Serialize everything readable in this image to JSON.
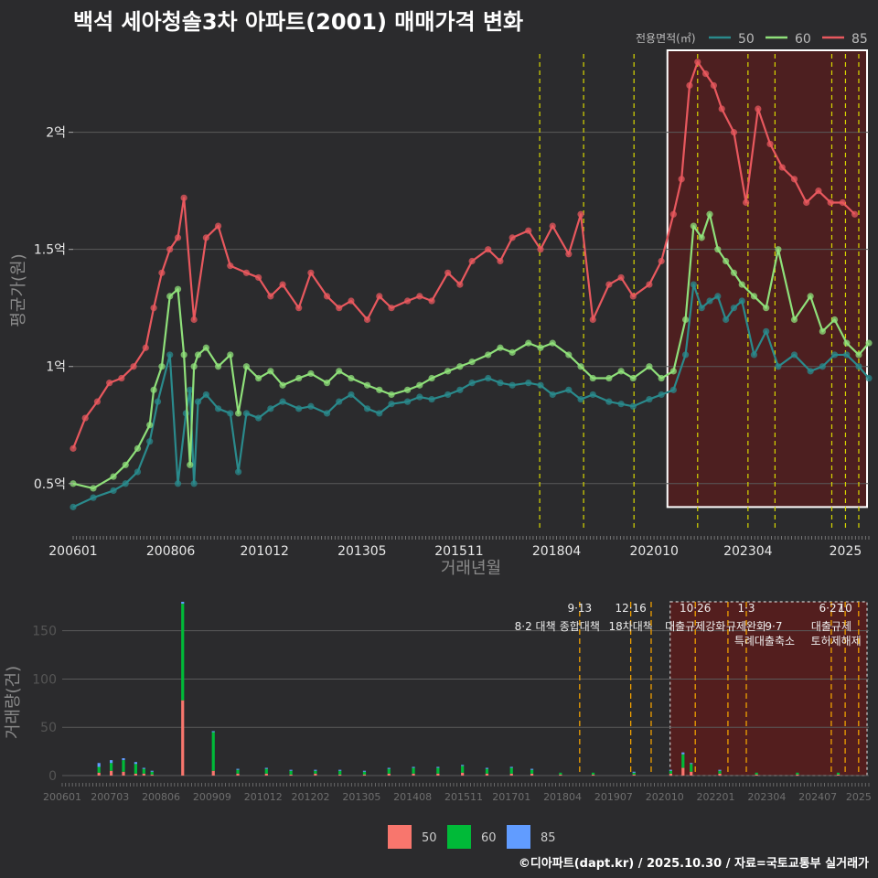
{
  "title": "백석 세아청솔3차 아파트(2001) 매매가격 변화",
  "credit": "©디아파트(dapt.kr) / 2025.10.30 / 자료=국토교통부 실거래가",
  "colors": {
    "s50": "#2a8a8c",
    "s60": "#8fe07a",
    "s85": "#e8585e",
    "bar50": "#f8766d",
    "bar60": "#00ba38",
    "bar85": "#619cff",
    "vline": "#d9d900",
    "vline_bottom": "#f0a000",
    "highlight": "#5a1c1c"
  },
  "chart_data": [
    {
      "type": "line",
      "title": "백석 세아청솔3차 아파트(2001) 매매가격 변화",
      "xlabel": "거래년월",
      "ylabel": "평균가(원)",
      "legend_title": "전용면적(㎡)",
      "legend_position": "top-right",
      "xlim": [
        2006.0,
        2025.75
      ],
      "ylim": [
        0.3,
        2.35
      ],
      "x_ticks": [
        {
          "x": 2006.0,
          "label": "200601"
        },
        {
          "x": 2008.42,
          "label": "200806"
        },
        {
          "x": 2010.75,
          "label": "201012"
        },
        {
          "x": 2013.17,
          "label": "201305"
        },
        {
          "x": 2015.58,
          "label": "201511"
        },
        {
          "x": 2018.0,
          "label": "201804"
        },
        {
          "x": 2020.42,
          "label": "202010"
        },
        {
          "x": 2022.75,
          "label": "202304"
        },
        {
          "x": 2025.17,
          "label": "2025"
        }
      ],
      "y_ticks": [
        {
          "y": 0.5,
          "label": "0.5억"
        },
        {
          "y": 1.0,
          "label": "1억"
        },
        {
          "y": 1.5,
          "label": "1.5억"
        },
        {
          "y": 2.0,
          "label": "2억"
        }
      ],
      "vlines": [
        2017.58,
        2018.67,
        2019.92,
        2021.5,
        2022.75,
        2023.42,
        2024.83,
        2025.17,
        2025.5
      ],
      "highlight_range": {
        "x": [
          2020.75,
          2025.75
        ],
        "y": [
          0.4,
          2.35
        ]
      },
      "series": [
        {
          "name": "50",
          "x": [
            2006.0,
            2006.5,
            2007.0,
            2007.3,
            2007.6,
            2007.9,
            2008.1,
            2008.4,
            2008.6,
            2008.8,
            2008.9,
            2009.0,
            2009.1,
            2009.3,
            2009.6,
            2009.9,
            2010.1,
            2010.3,
            2010.6,
            2010.9,
            2011.2,
            2011.6,
            2011.9,
            2012.3,
            2012.6,
            2012.9,
            2013.3,
            2013.6,
            2013.9,
            2014.3,
            2014.6,
            2014.9,
            2015.3,
            2015.6,
            2015.9,
            2016.3,
            2016.6,
            2016.9,
            2017.3,
            2017.6,
            2017.9,
            2018.3,
            2018.6,
            2018.9,
            2019.3,
            2019.6,
            2019.9,
            2020.3,
            2020.6,
            2020.9,
            2021.2,
            2021.4,
            2021.6,
            2021.8,
            2022.0,
            2022.2,
            2022.4,
            2022.6,
            2022.9,
            2023.2,
            2023.5,
            2023.9,
            2024.3,
            2024.6,
            2024.9,
            2025.2,
            2025.5,
            2025.75
          ],
          "values": [
            0.4,
            0.44,
            0.47,
            0.5,
            0.55,
            0.68,
            0.85,
            1.05,
            0.5,
            0.8,
            0.9,
            0.5,
            0.85,
            0.88,
            0.82,
            0.8,
            0.55,
            0.8,
            0.78,
            0.82,
            0.85,
            0.82,
            0.83,
            0.8,
            0.85,
            0.88,
            0.82,
            0.8,
            0.84,
            0.85,
            0.87,
            0.86,
            0.88,
            0.9,
            0.93,
            0.95,
            0.93,
            0.92,
            0.93,
            0.92,
            0.88,
            0.9,
            0.86,
            0.88,
            0.85,
            0.84,
            0.83,
            0.86,
            0.88,
            0.9,
            1.05,
            1.35,
            1.25,
            1.28,
            1.3,
            1.2,
            1.25,
            1.28,
            1.05,
            1.15,
            1.0,
            1.05,
            0.98,
            1.0,
            1.05,
            1.05,
            1.0,
            0.95
          ]
        },
        {
          "name": "60",
          "x": [
            2006.0,
            2006.5,
            2007.0,
            2007.3,
            2007.6,
            2007.9,
            2008.0,
            2008.2,
            2008.4,
            2008.6,
            2008.75,
            2008.9,
            2009.0,
            2009.1,
            2009.3,
            2009.6,
            2009.9,
            2010.1,
            2010.3,
            2010.6,
            2010.9,
            2011.2,
            2011.6,
            2011.9,
            2012.3,
            2012.6,
            2012.9,
            2013.3,
            2013.6,
            2013.9,
            2014.3,
            2014.6,
            2014.9,
            2015.3,
            2015.6,
            2015.9,
            2016.3,
            2016.6,
            2016.9,
            2017.3,
            2017.6,
            2017.9,
            2018.3,
            2018.6,
            2018.9,
            2019.3,
            2019.6,
            2019.9,
            2020.3,
            2020.6,
            2020.9,
            2021.2,
            2021.4,
            2021.6,
            2021.8,
            2022.0,
            2022.2,
            2022.4,
            2022.6,
            2022.9,
            2023.2,
            2023.5,
            2023.9,
            2024.3,
            2024.6,
            2024.9,
            2025.2,
            2025.5,
            2025.75
          ],
          "values": [
            0.5,
            0.48,
            0.53,
            0.58,
            0.65,
            0.75,
            0.9,
            1.0,
            1.3,
            1.33,
            1.05,
            0.58,
            1.0,
            1.05,
            1.08,
            1.0,
            1.05,
            0.8,
            1.0,
            0.95,
            0.98,
            0.92,
            0.95,
            0.97,
            0.93,
            0.98,
            0.95,
            0.92,
            0.9,
            0.88,
            0.9,
            0.92,
            0.95,
            0.98,
            1.0,
            1.02,
            1.05,
            1.08,
            1.06,
            1.1,
            1.08,
            1.1,
            1.05,
            1.0,
            0.95,
            0.95,
            0.98,
            0.95,
            1.0,
            0.95,
            0.98,
            1.2,
            1.6,
            1.55,
            1.65,
            1.5,
            1.45,
            1.4,
            1.35,
            1.3,
            1.25,
            1.5,
            1.2,
            1.3,
            1.15,
            1.2,
            1.1,
            1.05,
            1.1
          ]
        },
        {
          "name": "85",
          "x": [
            2006.0,
            2006.3,
            2006.6,
            2006.9,
            2007.2,
            2007.5,
            2007.8,
            2008.0,
            2008.2,
            2008.4,
            2008.6,
            2008.75,
            2009.0,
            2009.3,
            2009.6,
            2009.9,
            2010.3,
            2010.6,
            2010.9,
            2011.2,
            2011.6,
            2011.9,
            2012.3,
            2012.6,
            2012.9,
            2013.3,
            2013.6,
            2013.9,
            2014.3,
            2014.6,
            2014.9,
            2015.3,
            2015.6,
            2015.9,
            2016.3,
            2016.6,
            2016.9,
            2017.3,
            2017.6,
            2017.9,
            2018.3,
            2018.6,
            2018.9,
            2019.3,
            2019.6,
            2019.9,
            2020.3,
            2020.6,
            2020.9,
            2021.1,
            2021.3,
            2021.5,
            2021.7,
            2021.9,
            2022.1,
            2022.4,
            2022.7,
            2023.0,
            2023.3,
            2023.6,
            2023.9,
            2024.2,
            2024.5,
            2024.8,
            2025.1,
            2025.4
          ],
          "values": [
            0.65,
            0.78,
            0.85,
            0.93,
            0.95,
            1.0,
            1.08,
            1.25,
            1.4,
            1.5,
            1.55,
            1.72,
            1.2,
            1.55,
            1.6,
            1.43,
            1.4,
            1.38,
            1.3,
            1.35,
            1.25,
            1.4,
            1.3,
            1.25,
            1.28,
            1.2,
            1.3,
            1.25,
            1.28,
            1.3,
            1.28,
            1.4,
            1.35,
            1.45,
            1.5,
            1.45,
            1.55,
            1.58,
            1.5,
            1.6,
            1.48,
            1.65,
            1.2,
            1.35,
            1.38,
            1.3,
            1.35,
            1.45,
            1.65,
            1.8,
            2.2,
            2.3,
            2.25,
            2.2,
            2.1,
            2.0,
            1.7,
            2.1,
            1.95,
            1.85,
            1.8,
            1.7,
            1.75,
            1.7,
            1.7,
            1.65
          ]
        }
      ]
    },
    {
      "type": "bar",
      "stacked": true,
      "ylabel": "거래량(건)",
      "xlim": [
        2006.0,
        2025.75
      ],
      "ylim": [
        0,
        180
      ],
      "y_ticks": [
        0,
        50,
        100,
        150
      ],
      "x_ticks": [
        {
          "x": 2006.0,
          "label": "200601"
        },
        {
          "x": 2007.17,
          "label": "200703"
        },
        {
          "x": 2008.42,
          "label": "200806"
        },
        {
          "x": 2009.67,
          "label": "200909"
        },
        {
          "x": 2010.92,
          "label": "201012"
        },
        {
          "x": 2012.08,
          "label": "201202"
        },
        {
          "x": 2013.33,
          "label": "201305"
        },
        {
          "x": 2014.58,
          "label": "201408"
        },
        {
          "x": 2015.83,
          "label": "201511"
        },
        {
          "x": 2017.0,
          "label": "201701"
        },
        {
          "x": 2018.25,
          "label": "201804"
        },
        {
          "x": 2019.5,
          "label": "201907"
        },
        {
          "x": 2020.75,
          "label": "202010"
        },
        {
          "x": 2022.0,
          "label": "202201"
        },
        {
          "x": 2023.25,
          "label": "202304"
        },
        {
          "x": 2024.5,
          "label": "202407"
        },
        {
          "x": 2025.5,
          "label": "2025"
        }
      ],
      "legend": [
        "50",
        "60",
        "85"
      ],
      "legend_position": "bottom",
      "highlight_range": [
        2020.75,
        2025.75
      ],
      "vlines": [
        {
          "x": 2017.58,
          "label": "8·2 대책",
          "row": 1
        },
        {
          "x": 2018.67,
          "label": "9·13",
          "row": 0
        },
        {
          "x": 2018.67,
          "label": "종합대책",
          "row": 1
        },
        {
          "x": 2019.92,
          "label": "12·16",
          "row": 0
        },
        {
          "x": 2019.92,
          "label": "18차대책",
          "row": 1
        },
        {
          "x": 2020.42,
          "label": "",
          "row": 0
        },
        {
          "x": 2021.5,
          "label": "10·26",
          "row": 0
        },
        {
          "x": 2021.5,
          "label": "대출규제강화",
          "row": 1
        },
        {
          "x": 2022.3,
          "label": "",
          "row": 0
        },
        {
          "x": 2022.75,
          "label": "1·3",
          "row": 0
        },
        {
          "x": 2022.75,
          "label": "규제완화",
          "row": 1
        },
        {
          "x": 2023.42,
          "label": "9·7",
          "row": 1
        },
        {
          "x": 2023.42,
          "label": "특례대출축소",
          "row": 2
        },
        {
          "x": 2024.83,
          "label": "6·27",
          "row": 0
        },
        {
          "x": 2024.83,
          "label": "대출규제",
          "row": 1
        },
        {
          "x": 2025.17,
          "label": "10",
          "row": 0
        },
        {
          "x": 2025.17,
          "label": "토허제해제",
          "row": 2
        },
        {
          "x": 2025.5,
          "label": "",
          "row": 0
        }
      ],
      "series": [
        {
          "name": "50",
          "x": [
            2006.9,
            2007.2,
            2007.5,
            2007.8,
            2008.0,
            2008.2,
            2008.95,
            2009.7,
            2010.3,
            2011.0,
            2011.6,
            2012.2,
            2012.8,
            2013.4,
            2014.0,
            2014.6,
            2015.2,
            2015.8,
            2016.4,
            2017.0,
            2017.5,
            2018.2,
            2019.0,
            2020.0,
            2020.9,
            2021.2,
            2021.4,
            2022.1,
            2023.0,
            2024.0,
            2025.0
          ],
          "values": [
            3,
            5,
            4,
            2,
            2,
            1,
            78,
            5,
            2,
            2,
            1,
            2,
            1,
            1,
            2,
            2,
            2,
            3,
            2,
            2,
            2,
            1,
            1,
            1,
            2,
            8,
            4,
            2,
            1,
            1,
            1
          ]
        },
        {
          "name": "60",
          "x": [
            2006.9,
            2007.2,
            2007.5,
            2007.8,
            2008.0,
            2008.2,
            2008.95,
            2009.7,
            2010.3,
            2011.0,
            2011.6,
            2012.2,
            2012.8,
            2013.4,
            2014.0,
            2014.6,
            2015.2,
            2015.8,
            2016.4,
            2017.0,
            2017.5,
            2018.2,
            2019.0,
            2020.0,
            2020.9,
            2021.2,
            2021.4,
            2022.1,
            2023.0,
            2024.0,
            2025.0
          ],
          "values": [
            6,
            8,
            12,
            10,
            5,
            3,
            100,
            40,
            4,
            5,
            4,
            3,
            4,
            3,
            5,
            6,
            6,
            7,
            5,
            6,
            4,
            2,
            2,
            2,
            3,
            14,
            8,
            3,
            2,
            2,
            2
          ]
        },
        {
          "name": "85",
          "x": [
            2006.9,
            2007.2,
            2007.5,
            2007.8,
            2008.0,
            2008.2,
            2008.95,
            2009.7,
            2010.3,
            2011.0,
            2011.6,
            2012.2,
            2012.8,
            2013.4,
            2014.0,
            2014.6,
            2015.2,
            2015.8,
            2016.4,
            2017.0,
            2017.5,
            2018.2,
            2019.0,
            2020.0,
            2020.9,
            2021.2,
            2021.4,
            2022.1,
            2023.0,
            2024.0,
            2025.0
          ],
          "values": [
            4,
            3,
            2,
            2,
            1,
            1,
            2,
            1,
            1,
            1,
            1,
            1,
            1,
            1,
            1,
            1,
            1,
            1,
            1,
            1,
            1,
            0,
            0,
            1,
            1,
            2,
            1,
            1,
            0,
            0,
            0
          ]
        }
      ]
    }
  ]
}
